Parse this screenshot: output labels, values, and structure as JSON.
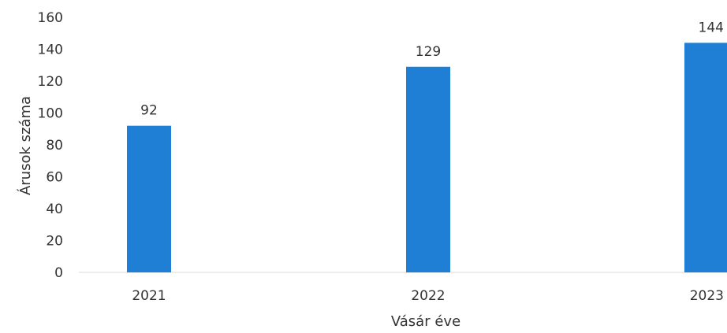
{
  "chart_data": {
    "type": "bar",
    "title": "",
    "xlabel": "Vásár éve",
    "ylabel": "Árusok száma",
    "categories": [
      "2021",
      "2022",
      "2023"
    ],
    "values": [
      92,
      129,
      144
    ],
    "data_labels": [
      "92",
      "129",
      "144"
    ],
    "ylim": [
      0,
      160
    ],
    "yticks": [
      "0",
      "20",
      "40",
      "60",
      "80",
      "100",
      "120",
      "140",
      "160"
    ],
    "grid": false,
    "legend": "none",
    "bar_color": "#1f7fd4"
  }
}
